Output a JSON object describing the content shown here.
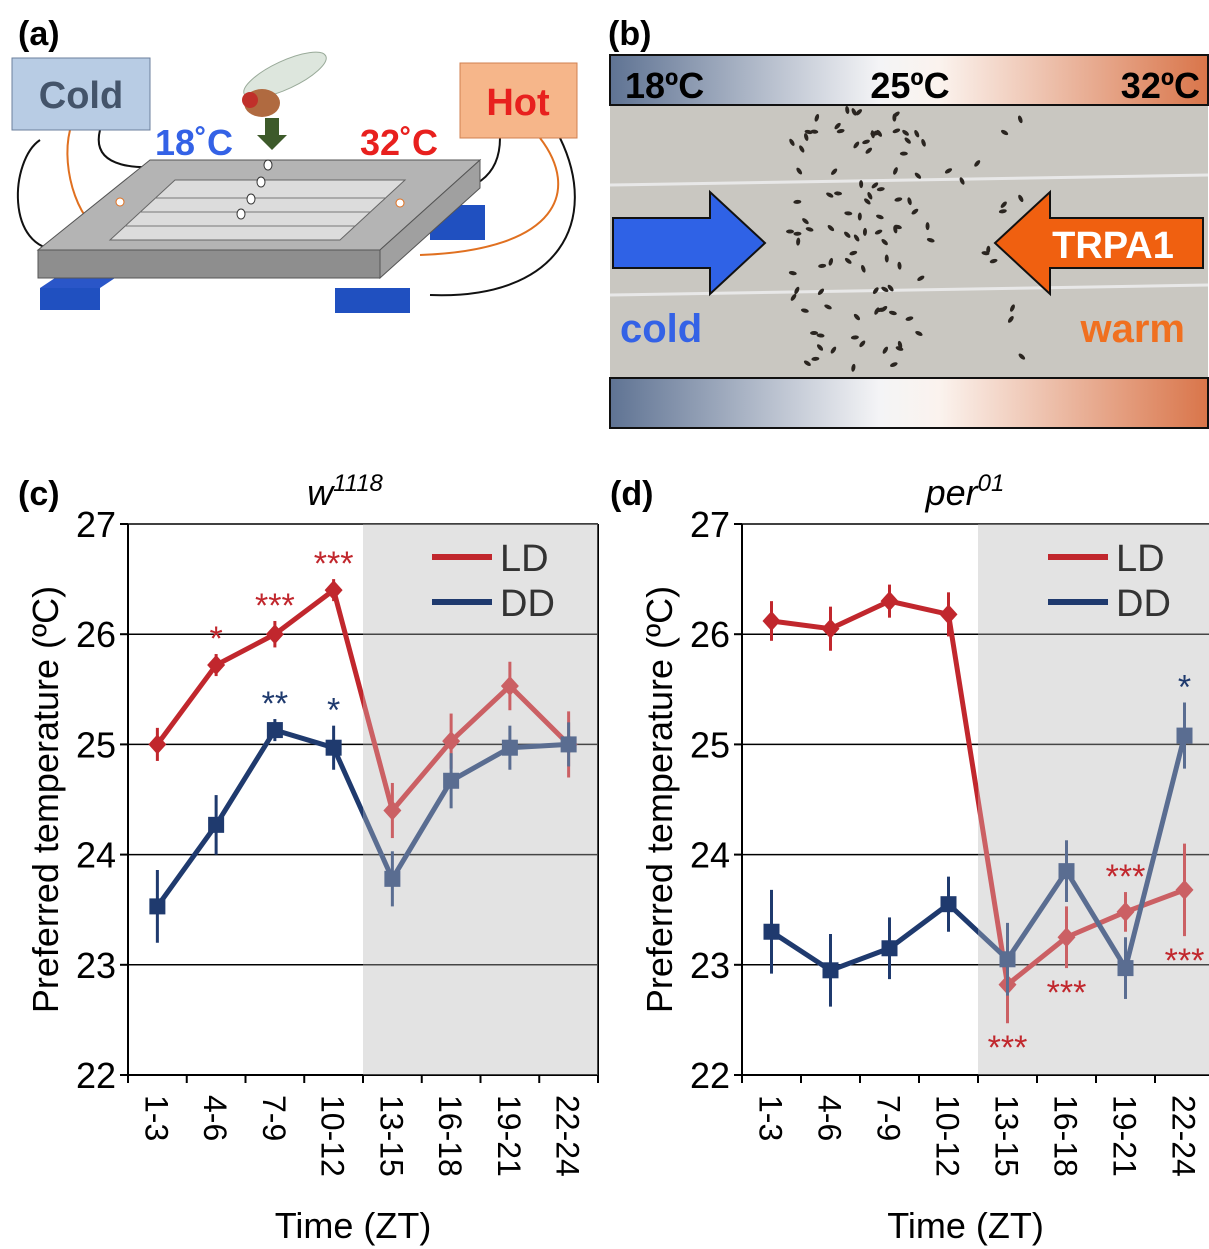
{
  "panels": {
    "a": {
      "label": "(a)",
      "cold": "Cold",
      "hot": "Hot",
      "left_temp": "18˚C",
      "right_temp": "32˚C"
    },
    "b": {
      "label": "(b)",
      "left_temp": "18ºC",
      "mid_temp": "25ºC",
      "right_temp": "32ºC",
      "channel": "TRPA1",
      "cold": "cold",
      "warm": "warm"
    }
  },
  "chart_data": [
    {
      "type": "line",
      "panel_label": "(c)",
      "title": {
        "base": "w",
        "sup": "1118"
      },
      "x_label": "Time (ZT)",
      "y_label": "Preferred temperature (ºC)",
      "categories": [
        "1-3",
        "4-6",
        "7-9",
        "10-12",
        "13-15",
        "16-18",
        "19-21",
        "22-24"
      ],
      "series": [
        {
          "name": "LD",
          "color": "#c1272d",
          "marker": "diamond",
          "values": [
            25.0,
            25.72,
            26.0,
            26.4,
            24.4,
            25.03,
            25.53,
            25.0
          ],
          "errors": [
            0.15,
            0.1,
            0.12,
            0.1,
            0.25,
            0.25,
            0.22,
            0.3
          ]
        },
        {
          "name": "DD",
          "color": "#1f3a6e",
          "marker": "square",
          "values": [
            23.53,
            24.27,
            25.13,
            24.97,
            23.78,
            24.67,
            24.97,
            25.0
          ],
          "errors": [
            0.33,
            0.27,
            0.1,
            0.2,
            0.25,
            0.25,
            0.2,
            0.2
          ]
        }
      ],
      "annotations": [
        {
          "series": 0,
          "index": 1,
          "text": "*",
          "position": "above"
        },
        {
          "series": 0,
          "index": 2,
          "text": "***",
          "position": "above"
        },
        {
          "series": 0,
          "index": 3,
          "text": "***",
          "position": "above"
        },
        {
          "series": 1,
          "index": 2,
          "text": "**",
          "position": "above"
        },
        {
          "series": 1,
          "index": 3,
          "text": "*",
          "position": "above"
        }
      ],
      "ylim": [
        22,
        27
      ],
      "yticks": [
        22,
        23,
        24,
        25,
        26,
        27
      ],
      "grid": true,
      "shade_start": 4,
      "legend": "upper right"
    },
    {
      "type": "line",
      "panel_label": "(d)",
      "title": {
        "base": "per",
        "sup": "01"
      },
      "x_label": "Time (ZT)",
      "y_label": "Preferred temperature (ºC)",
      "categories": [
        "1-3",
        "4-6",
        "7-9",
        "10-12",
        "13-15",
        "16-18",
        "19-21",
        "22-24"
      ],
      "series": [
        {
          "name": "LD",
          "color": "#c1272d",
          "marker": "diamond",
          "values": [
            26.12,
            26.05,
            26.3,
            26.18,
            22.82,
            23.25,
            23.48,
            23.68
          ],
          "errors": [
            0.18,
            0.2,
            0.15,
            0.2,
            0.35,
            0.28,
            0.18,
            0.42
          ]
        },
        {
          "name": "DD",
          "color": "#1f3a6e",
          "marker": "square",
          "values": [
            23.3,
            22.95,
            23.15,
            23.55,
            23.05,
            23.85,
            22.97,
            25.08
          ],
          "errors": [
            0.38,
            0.33,
            0.28,
            0.25,
            0.33,
            0.28,
            0.28,
            0.3
          ]
        }
      ],
      "annotations": [
        {
          "series": 0,
          "index": 4,
          "text": "***",
          "position": "below"
        },
        {
          "series": 0,
          "index": 5,
          "text": "***",
          "position": "below"
        },
        {
          "series": 0,
          "index": 6,
          "text": "***",
          "position": "above"
        },
        {
          "series": 0,
          "index": 7,
          "text": "***",
          "position": "below"
        },
        {
          "series": 1,
          "index": 7,
          "text": "*",
          "position": "above"
        }
      ],
      "ylim": [
        22,
        27
      ],
      "yticks": [
        22,
        23,
        24,
        25,
        26,
        27
      ],
      "grid": true,
      "shade_start": 4,
      "legend": "upper right"
    }
  ]
}
